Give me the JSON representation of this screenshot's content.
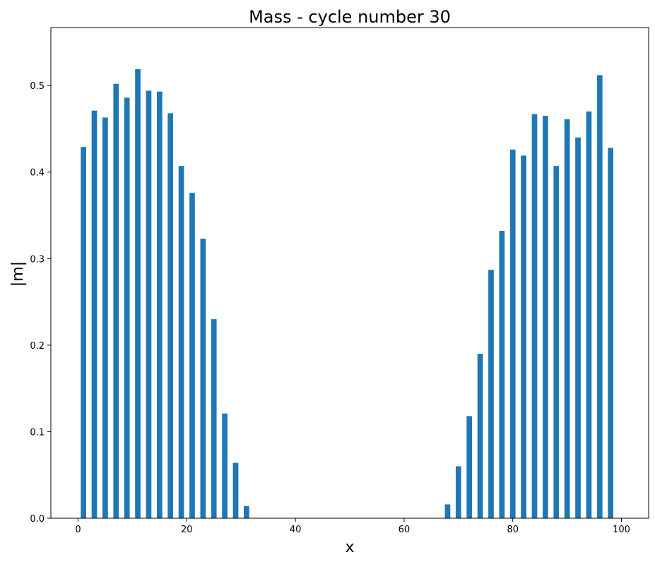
{
  "chart_data": {
    "type": "bar",
    "title": "Mass - cycle number 30",
    "xlabel": "x",
    "ylabel": "|m|",
    "xlim": [
      -5,
      105
    ],
    "ylim": [
      0,
      0.567
    ],
    "xticks": [
      0,
      20,
      40,
      60,
      80,
      100
    ],
    "xtick_labels": [
      "0",
      "20",
      "40",
      "60",
      "80",
      "100"
    ],
    "yticks": [
      0.0,
      0.1,
      0.2,
      0.3,
      0.4,
      0.5
    ],
    "ytick_labels": [
      "0.0",
      "0.1",
      "0.2",
      "0.3",
      "0.4",
      "0.5"
    ],
    "grid": false,
    "bar_width": 1,
    "color": "#1f77b4",
    "x": [
      1,
      3,
      5,
      7,
      9,
      11,
      13,
      15,
      17,
      19,
      21,
      23,
      25,
      27,
      29,
      31,
      68,
      70,
      72,
      74,
      76,
      78,
      80,
      82,
      84,
      86,
      88,
      90,
      92,
      94,
      96,
      98
    ],
    "values": [
      0.429,
      0.471,
      0.463,
      0.502,
      0.486,
      0.519,
      0.494,
      0.493,
      0.468,
      0.407,
      0.376,
      0.323,
      0.23,
      0.121,
      0.064,
      0.014,
      0.016,
      0.06,
      0.118,
      0.19,
      0.287,
      0.332,
      0.426,
      0.419,
      0.467,
      0.465,
      0.407,
      0.461,
      0.44,
      0.47,
      0.512,
      0.428
    ]
  }
}
